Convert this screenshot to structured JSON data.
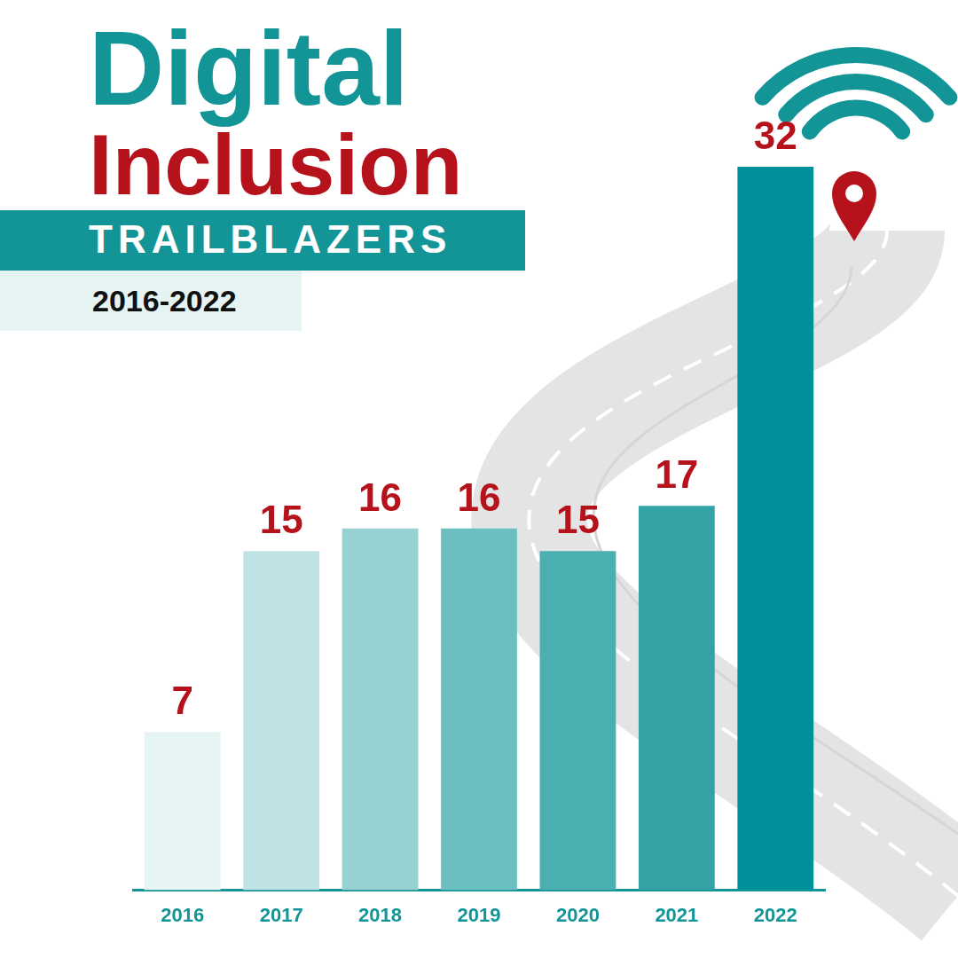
{
  "chart_data": {
    "type": "bar",
    "title": "Digital Inclusion",
    "subtitle": "TRAILBLAZERS",
    "annotations": [
      "2016-2022"
    ],
    "categories": [
      "2016",
      "2017",
      "2018",
      "2019",
      "2020",
      "2021",
      "2022"
    ],
    "values": [
      7,
      15,
      16,
      16,
      15,
      17,
      32
    ],
    "colors": [
      "#e6f4f3",
      "#bfe3e4",
      "#97d1d2",
      "#6cbfc1",
      "#4aafb1",
      "#33a3a5",
      "#00909a"
    ],
    "ylim": [
      0,
      32
    ],
    "grid": false,
    "data_labels": true,
    "tick_labels": "x"
  }
}
